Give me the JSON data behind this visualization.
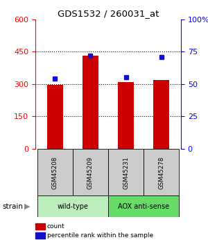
{
  "title": "GDS1532 / 260031_at",
  "samples": [
    "GSM45208",
    "GSM45209",
    "GSM45231",
    "GSM45278"
  ],
  "counts": [
    295,
    430,
    308,
    320
  ],
  "percentiles": [
    54,
    72,
    55,
    71
  ],
  "ylim_left": [
    0,
    600
  ],
  "ylim_right": [
    0,
    100
  ],
  "yticks_left": [
    0,
    150,
    300,
    450,
    600
  ],
  "yticks_right": [
    0,
    25,
    50,
    75,
    100
  ],
  "bar_color": "#cc0000",
  "dot_color": "#1111cc",
  "bar_width": 0.45,
  "groups": [
    {
      "label": "wild-type",
      "indices": [
        0,
        1
      ],
      "color": "#bbeebb"
    },
    {
      "label": "AOX anti-sense",
      "indices": [
        2,
        3
      ],
      "color": "#66dd66"
    }
  ],
  "strain_label": "strain",
  "legend_items": [
    {
      "color": "#cc0000",
      "label": "count"
    },
    {
      "color": "#1111cc",
      "label": "percentile rank within the sample"
    }
  ],
  "sample_box_color": "#cccccc",
  "background_color": "#ffffff",
  "figsize": [
    3.0,
    3.45
  ],
  "dpi": 100
}
